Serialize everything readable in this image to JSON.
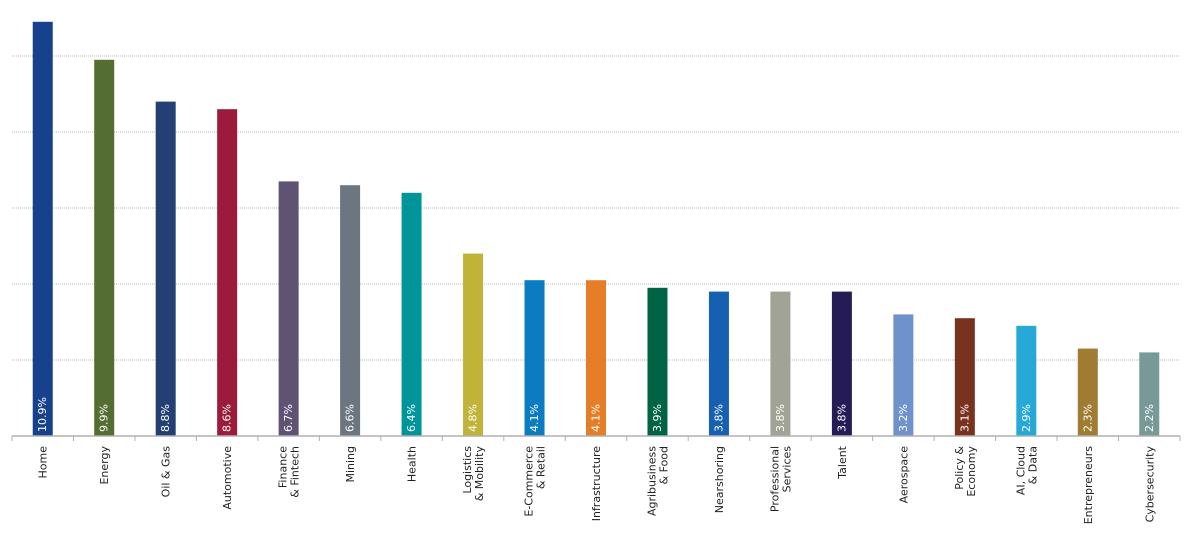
{
  "chart_data": {
    "type": "bar",
    "title": "",
    "xlabel": "",
    "ylabel": "",
    "ylim": [
      0,
      11
    ],
    "grid": "horizontal-dotted",
    "legend": "none",
    "categories": [
      "Home",
      "Energy",
      "Oil & Gas",
      "Automotive",
      "Finance\n& Fintech",
      "Mining",
      "Health",
      "Logistics\n& Mobility",
      "E-Commerce\n& Retail",
      "Infrastructure",
      "Agribusiness\n& Food",
      "Nearshoring",
      "Professional\nServices",
      "Talent",
      "Aerospace",
      "Policy &\nEconomy",
      "AI, Cloud\n& Data",
      "Entrepreneurs",
      "Cybersecurity"
    ],
    "values": [
      10.9,
      9.9,
      8.8,
      8.6,
      6.7,
      6.6,
      6.4,
      4.8,
      4.1,
      4.1,
      3.9,
      3.8,
      3.8,
      3.8,
      3.2,
      3.1,
      2.9,
      2.3,
      2.2
    ],
    "data_labels": [
      "10.9%",
      "9.9%",
      "8.8%",
      "8.6%",
      "6.7%",
      "6.6%",
      "6.4%",
      "4.8%",
      "4.1%",
      "4.1%",
      "3.9%",
      "3.8%",
      "3.8%",
      "3.8%",
      "3.2%",
      "3.1%",
      "2.9%",
      "2.3%",
      "2.2%"
    ],
    "colors": [
      "#17418c",
      "#546d31",
      "#233f73",
      "#9b1b3a",
      "#5f5273",
      "#6b7680",
      "#00959b",
      "#c0b338",
      "#0b7cc2",
      "#e67e27",
      "#006343",
      "#1560b0",
      "#a1a495",
      "#261c55",
      "#6f92cc",
      "#7a3220",
      "#27a9d8",
      "#9f7c31",
      "#779a97"
    ]
  }
}
